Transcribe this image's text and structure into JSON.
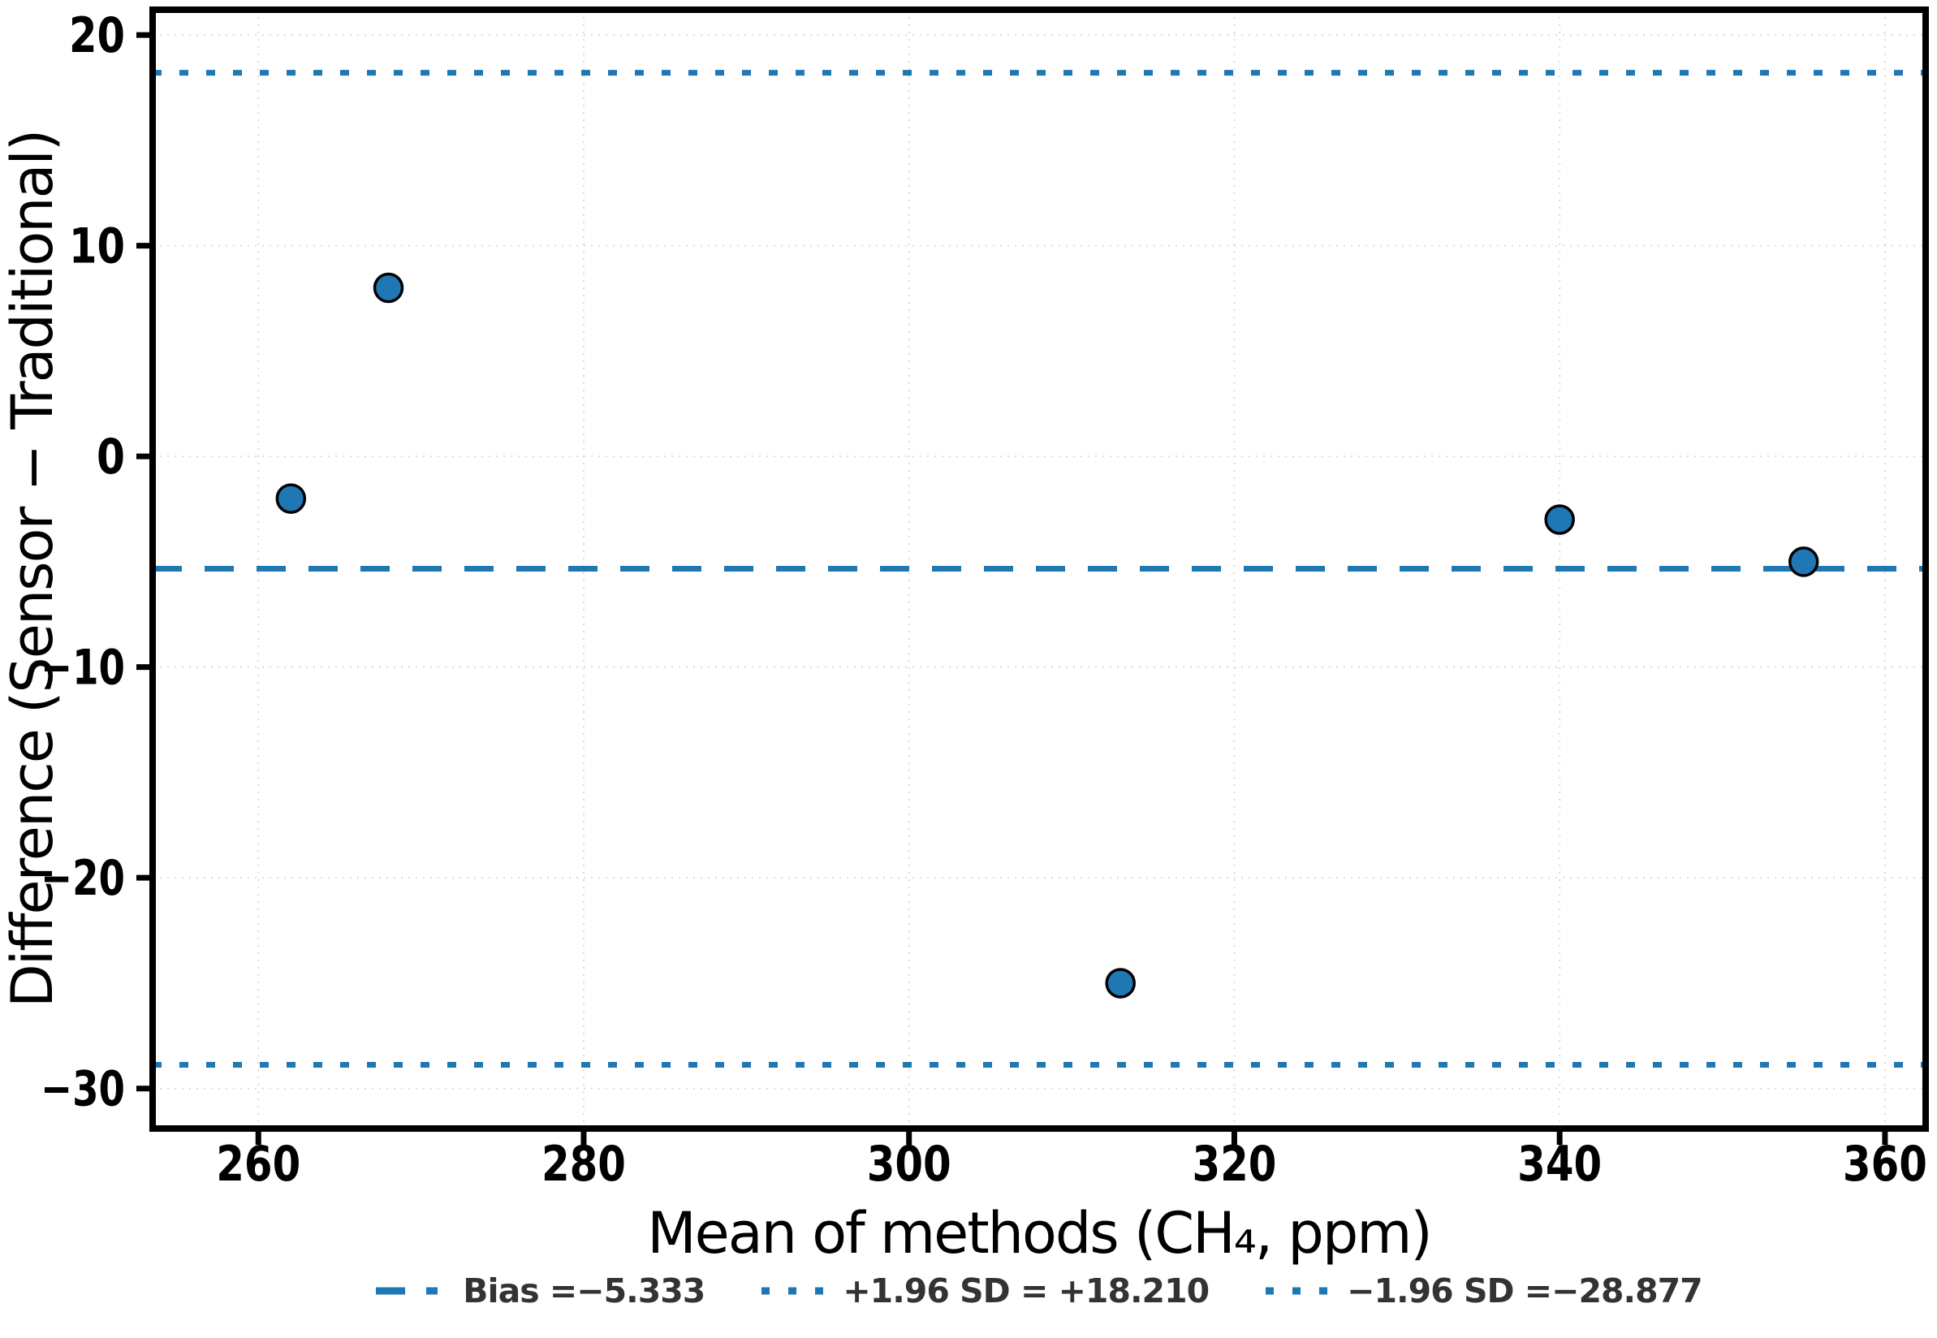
{
  "chart_data": {
    "type": "scatter",
    "title": "",
    "xlabel": "Mean of methods (CH₄, ppm)",
    "ylabel": "Difference (Sensor − Traditional)",
    "points": [
      {
        "x": 262,
        "y": -2
      },
      {
        "x": 268,
        "y": 8
      },
      {
        "x": 313,
        "y": -25
      },
      {
        "x": 340,
        "y": -3
      },
      {
        "x": 355,
        "y": -5
      }
    ],
    "xlim": [
      253.5,
      362.5
    ],
    "ylim": [
      -31.9,
      21.2
    ],
    "xticks": {
      "values": [
        260,
        280,
        300,
        320,
        340,
        360
      ],
      "labels": [
        "260",
        "280",
        "300",
        "320",
        "340",
        "360"
      ]
    },
    "yticks": {
      "values": [
        20,
        10,
        0,
        -10,
        -20,
        -30
      ],
      "labels": [
        "20",
        "10",
        "0",
        "−10",
        "−20",
        "−30"
      ]
    },
    "grid": {
      "visible": true,
      "style": "dotted"
    },
    "reference_lines": [
      {
        "id": "bias",
        "value": -5.333,
        "style": "dashed",
        "legend_label": "Bias =−5.333"
      },
      {
        "id": "upper-loa",
        "value": 18.21,
        "style": "dotted",
        "legend_label": "+1.96 SD = +18.210"
      },
      {
        "id": "lower-loa",
        "value": -28.877,
        "style": "dotted",
        "legend_label": "−1.96 SD =−28.877"
      }
    ],
    "legend_position": "below",
    "colors": {
      "accent": "#1f77b4",
      "marker_fill": "#1f77b4",
      "marker_edge": "#000000",
      "grid": "#dcdcdc",
      "axis": "#000000",
      "legend_text": "#333333",
      "background": "#ffffff"
    }
  }
}
